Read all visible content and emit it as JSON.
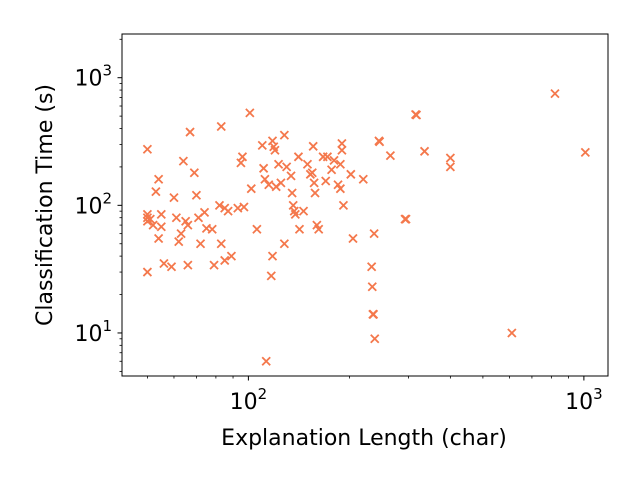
{
  "chart_data": {
    "type": "scatter",
    "xlabel": "Explanation Length (char)",
    "ylabel": "Classification Time (s)",
    "xscale": "log",
    "yscale": "log",
    "xlim": [
      42,
      1180
    ],
    "ylim": [
      4.6,
      2200
    ],
    "grid": false,
    "marker": "x",
    "color": "#f4784c",
    "x_ticks": [
      {
        "value": 100,
        "base": "10",
        "exp": "2"
      },
      {
        "value": 1000,
        "base": "10",
        "exp": "3"
      }
    ],
    "y_ticks": [
      {
        "value": 10,
        "base": "10",
        "exp": "1"
      },
      {
        "value": 100,
        "base": "10",
        "exp": "2"
      },
      {
        "value": 1000,
        "base": "10",
        "exp": "3"
      }
    ],
    "points": [
      [
        50,
        275
      ],
      [
        50,
        85
      ],
      [
        50,
        80
      ],
      [
        50,
        75
      ],
      [
        50,
        30
      ],
      [
        51,
        78
      ],
      [
        52,
        70
      ],
      [
        53,
        128
      ],
      [
        54,
        160
      ],
      [
        54,
        55
      ],
      [
        55,
        85
      ],
      [
        55,
        68
      ],
      [
        56,
        35
      ],
      [
        59,
        33
      ],
      [
        60,
        115
      ],
      [
        61,
        80
      ],
      [
        62,
        52
      ],
      [
        63,
        60
      ],
      [
        64,
        222
      ],
      [
        65,
        75
      ],
      [
        66,
        70
      ],
      [
        66,
        34
      ],
      [
        67,
        375
      ],
      [
        69,
        180
      ],
      [
        70,
        120
      ],
      [
        71,
        80
      ],
      [
        72,
        50
      ],
      [
        74,
        88
      ],
      [
        75,
        66
      ],
      [
        78,
        65
      ],
      [
        79,
        34
      ],
      [
        82,
        100
      ],
      [
        83,
        415
      ],
      [
        83,
        50
      ],
      [
        85,
        95
      ],
      [
        85,
        37
      ],
      [
        87,
        90
      ],
      [
        89,
        40
      ],
      [
        93,
        95
      ],
      [
        95,
        215
      ],
      [
        96,
        240
      ],
      [
        97,
        97
      ],
      [
        101,
        530
      ],
      [
        102,
        135
      ],
      [
        106,
        65
      ],
      [
        110,
        295
      ],
      [
        111,
        195
      ],
      [
        112,
        160
      ],
      [
        113,
        6
      ],
      [
        115,
        145
      ],
      [
        117,
        28
      ],
      [
        118,
        40
      ],
      [
        118,
        320
      ],
      [
        119,
        288
      ],
      [
        120,
        270
      ],
      [
        121,
        140
      ],
      [
        123,
        210
      ],
      [
        125,
        150
      ],
      [
        128,
        355
      ],
      [
        128,
        50
      ],
      [
        130,
        200
      ],
      [
        134,
        170
      ],
      [
        135,
        125
      ],
      [
        136,
        100
      ],
      [
        137,
        90
      ],
      [
        138,
        85
      ],
      [
        141,
        240
      ],
      [
        142,
        65
      ],
      [
        146,
        90
      ],
      [
        150,
        210
      ],
      [
        153,
        175
      ],
      [
        155,
        180
      ],
      [
        156,
        290
      ],
      [
        157,
        150
      ],
      [
        158,
        125
      ],
      [
        160,
        70
      ],
      [
        162,
        65
      ],
      [
        167,
        240
      ],
      [
        170,
        155
      ],
      [
        172,
        240
      ],
      [
        177,
        190
      ],
      [
        180,
        225
      ],
      [
        185,
        145
      ],
      [
        188,
        210
      ],
      [
        188,
        135
      ],
      [
        190,
        305
      ],
      [
        190,
        270
      ],
      [
        192,
        100
      ],
      [
        202,
        175
      ],
      [
        205,
        55
      ],
      [
        220,
        160
      ],
      [
        233,
        33
      ],
      [
        234,
        23
      ],
      [
        235,
        14
      ],
      [
        236,
        14
      ],
      [
        237,
        60
      ],
      [
        238,
        9
      ],
      [
        245,
        320
      ],
      [
        246,
        315
      ],
      [
        265,
        245
      ],
      [
        293,
        78
      ],
      [
        295,
        78
      ],
      [
        315,
        515
      ],
      [
        317,
        510
      ],
      [
        335,
        265
      ],
      [
        400,
        235
      ],
      [
        400,
        200
      ],
      [
        610,
        10
      ],
      [
        820,
        750
      ],
      [
        1010,
        260
      ]
    ]
  }
}
